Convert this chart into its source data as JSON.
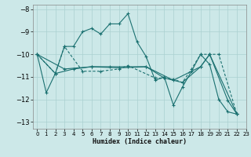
{
  "xlabel": "Humidex (Indice chaleur)",
  "bg_color": "#cce8e8",
  "grid_color": "#aad0d0",
  "line_color": "#1a7070",
  "xlim": [
    -0.5,
    23
  ],
  "ylim": [
    -13.3,
    -7.8
  ],
  "yticks": [
    -13,
    -12,
    -11,
    -10,
    -9,
    -8
  ],
  "xticks": [
    0,
    1,
    2,
    3,
    4,
    5,
    6,
    7,
    8,
    9,
    10,
    11,
    12,
    13,
    14,
    15,
    16,
    17,
    18,
    19,
    20,
    21,
    22,
    23
  ],
  "series1": [
    [
      0,
      -10.0
    ],
    [
      1,
      -11.7
    ],
    [
      2,
      -10.85
    ],
    [
      3,
      -9.65
    ],
    [
      4,
      -9.65
    ],
    [
      5,
      -9.0
    ],
    [
      6,
      -8.85
    ],
    [
      7,
      -9.1
    ],
    [
      8,
      -8.65
    ],
    [
      9,
      -8.65
    ],
    [
      10,
      -8.2
    ],
    [
      11,
      -9.45
    ],
    [
      12,
      -10.1
    ],
    [
      13,
      -11.15
    ],
    [
      14,
      -11.0
    ],
    [
      15,
      -12.25
    ],
    [
      16,
      -11.45
    ],
    [
      17,
      -10.75
    ],
    [
      18,
      -10.0
    ],
    [
      19,
      -10.45
    ],
    [
      20,
      -12.0
    ],
    [
      21,
      -12.55
    ],
    [
      22,
      -12.65
    ]
  ],
  "series2": [
    [
      0,
      -10.0
    ],
    [
      2,
      -10.85
    ],
    [
      3,
      -9.65
    ],
    [
      5,
      -10.75
    ],
    [
      7,
      -10.75
    ],
    [
      9,
      -10.65
    ],
    [
      10,
      -10.5
    ],
    [
      13,
      -11.05
    ],
    [
      15,
      -11.1
    ],
    [
      16,
      -11.25
    ],
    [
      17,
      -10.65
    ],
    [
      18,
      -10.0
    ],
    [
      19,
      -10.0
    ],
    [
      20,
      -10.0
    ],
    [
      22,
      -12.65
    ]
  ],
  "series3": [
    [
      0,
      -10.0
    ],
    [
      2,
      -10.85
    ],
    [
      4,
      -10.65
    ],
    [
      6,
      -10.55
    ],
    [
      8,
      -10.55
    ],
    [
      10,
      -10.55
    ],
    [
      12,
      -10.55
    ],
    [
      14,
      -11.05
    ],
    [
      16,
      -11.25
    ],
    [
      18,
      -10.55
    ],
    [
      19,
      -10.0
    ],
    [
      22,
      -12.65
    ]
  ],
  "series4": [
    [
      0,
      -10.0
    ],
    [
      3,
      -10.65
    ],
    [
      6,
      -10.55
    ],
    [
      9,
      -10.6
    ],
    [
      12,
      -10.55
    ],
    [
      15,
      -11.15
    ],
    [
      18,
      -10.55
    ],
    [
      19,
      -10.0
    ],
    [
      21,
      -12.05
    ],
    [
      22,
      -12.65
    ]
  ]
}
